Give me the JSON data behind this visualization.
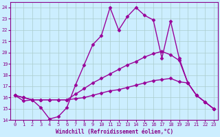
{
  "xlabel": "Windchill (Refroidissement éolien,°C)",
  "xlim": [
    -0.5,
    23.5
  ],
  "ylim": [
    14,
    24.5
  ],
  "yticks": [
    14,
    15,
    16,
    17,
    18,
    19,
    20,
    21,
    22,
    23,
    24
  ],
  "xticks": [
    0,
    1,
    2,
    3,
    4,
    5,
    6,
    7,
    8,
    9,
    10,
    11,
    12,
    13,
    14,
    15,
    16,
    17,
    18,
    19,
    20,
    21,
    22,
    23
  ],
  "background_color": "#cceeff",
  "grid_color": "#aacccc",
  "line_color": "#990099",
  "line1_y": [
    16.2,
    15.7,
    15.8,
    15.1,
    14.1,
    14.3,
    15.1,
    17.1,
    18.9,
    20.7,
    21.5,
    24.0,
    22.0,
    23.2,
    24.0,
    23.3,
    22.9,
    19.5,
    22.8,
    19.5,
    17.3,
    16.2,
    15.6,
    15.0
  ],
  "line2_y": [
    16.2,
    16.0,
    15.8,
    15.8,
    15.8,
    15.8,
    15.8,
    16.3,
    16.8,
    17.3,
    17.7,
    18.1,
    18.5,
    18.9,
    19.2,
    19.6,
    19.9,
    20.1,
    19.8,
    19.3,
    17.3,
    16.2,
    15.6,
    15.0
  ],
  "line3_y": [
    16.2,
    16.0,
    15.8,
    15.8,
    15.8,
    15.8,
    15.8,
    15.9,
    16.0,
    16.2,
    16.4,
    16.6,
    16.7,
    16.9,
    17.1,
    17.3,
    17.5,
    17.6,
    17.7,
    17.4,
    17.3,
    16.2,
    15.6,
    15.0
  ],
  "marker": "D",
  "markersize": 2.5,
  "linewidth": 1.0
}
